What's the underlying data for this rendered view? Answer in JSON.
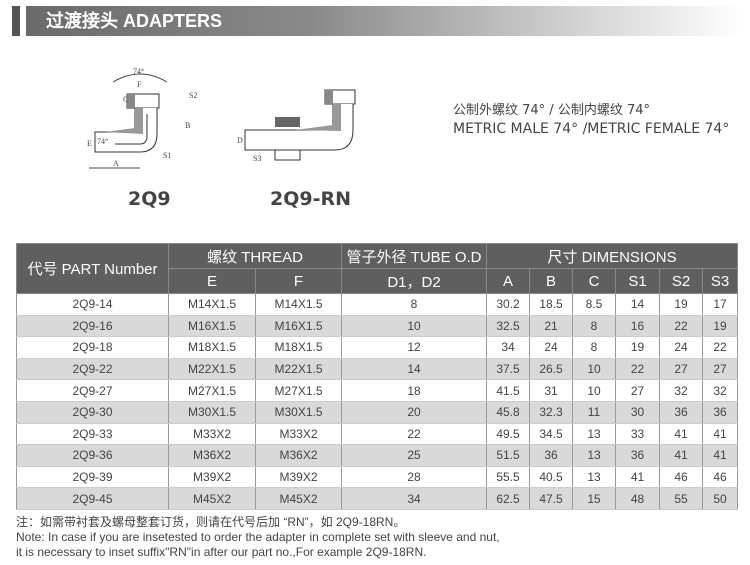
{
  "header": {
    "title": "过渡接头  ADAPTERS"
  },
  "figures": [
    {
      "model": "2Q9",
      "labels": [
        "74°",
        "F",
        "C",
        "S2",
        "B",
        "E",
        "74°",
        "S1",
        "A"
      ]
    },
    {
      "model": "2Q9-RN",
      "labels": [
        "D",
        "S3"
      ]
    }
  ],
  "description": {
    "cn": "公制外螺纹 74° / 公制内螺纹 74°",
    "en": "METRIC MALE 74° /METRIC FEMALE 74°"
  },
  "table": {
    "headers": {
      "part": "代号 PART Number",
      "thread": "螺纹 THREAD",
      "tube": "管子外径 TUBE O.D",
      "dims": "尺寸 DIMENSIONS",
      "sub": [
        "E",
        "F",
        "D1，D2",
        "A",
        "B",
        "C",
        "S1",
        "S2",
        "S3"
      ]
    },
    "rows": [
      [
        "2Q9-14",
        "M14X1.5",
        "M14X1.5",
        "8",
        "30.2",
        "18.5",
        "8.5",
        "14",
        "19",
        "17"
      ],
      [
        "2Q9-16",
        "M16X1.5",
        "M16X1.5",
        "10",
        "32.5",
        "21",
        "8",
        "16",
        "22",
        "19"
      ],
      [
        "2Q9-18",
        "M18X1.5",
        "M18X1.5",
        "12",
        "34",
        "24",
        "8",
        "19",
        "24",
        "22"
      ],
      [
        "2Q9-22",
        "M22X1.5",
        "M22X1.5",
        "14",
        "37.5",
        "26.5",
        "10",
        "22",
        "27",
        "27"
      ],
      [
        "2Q9-27",
        "M27X1.5",
        "M27X1.5",
        "18",
        "41.5",
        "31",
        "10",
        "27",
        "32",
        "32"
      ],
      [
        "2Q9-30",
        "M30X1.5",
        "M30X1.5",
        "20",
        "45.8",
        "32.3",
        "11",
        "30",
        "36",
        "36"
      ],
      [
        "2Q9-33",
        "M33X2",
        "M33X2",
        "22",
        "49.5",
        "34.5",
        "13",
        "33",
        "41",
        "41"
      ],
      [
        "2Q9-36",
        "M36X2",
        "M36X2",
        "25",
        "51.5",
        "36",
        "13",
        "36",
        "41",
        "41"
      ],
      [
        "2Q9-39",
        "M39X2",
        "M39X2",
        "28",
        "55.5",
        "40.5",
        "13",
        "41",
        "46",
        "46"
      ],
      [
        "2Q9-45",
        "M45X2",
        "M45X2",
        "34",
        "62.5",
        "47.5",
        "15",
        "48",
        "55",
        "50"
      ]
    ]
  },
  "note": [
    "注：如需带衬套及螺母整套订货，则请在代号后加 “RN”，如 2Q9-18RN。",
    "Note: In case if you are insetested to order the adapter in complete set with sleeve and nut,",
    "it is necessary to inset suffix\"RN\"in after our part no.,For example 2Q9-18RN."
  ]
}
